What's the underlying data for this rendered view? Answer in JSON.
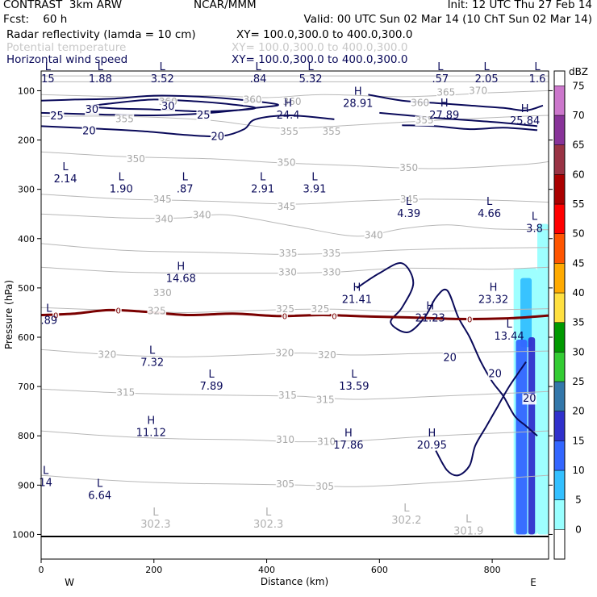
{
  "header": {
    "title": "CONTRAST  3km ARW",
    "source": "NCAR/MMM",
    "init": "Init: 12 UTC Thu 27 Feb 14",
    "fcst": "Fcst:    60 h",
    "valid": "Valid: 00 UTC Sun 02 Mar 14 (10 ChT Sun 02 Mar 14)",
    "fields": [
      {
        "name": "Radar reflectivity (lamda = 10 cm)",
        "xy": "XY= 100.0,300.0 to 400.0,300.0",
        "style": "dark"
      },
      {
        "name": "Potential temperature",
        "xy": "XY= 100.0,300.0 to 400.0,300.0",
        "style": "gray"
      },
      {
        "name": "Horizontal wind speed",
        "xy": "XY= 100.0,300.0 to 400.0,300.0",
        "style": "navy"
      }
    ]
  },
  "chart_data": {
    "type": "cross-section",
    "xlabel": "Distance (km)",
    "ylabel": "Pressure (hPa)",
    "xlim": [
      0,
      900
    ],
    "ylim": [
      1050,
      60
    ],
    "x_ticks": [
      0,
      200,
      400,
      600,
      800
    ],
    "y_ticks": [
      100,
      200,
      300,
      400,
      500,
      600,
      700,
      800,
      900,
      1000
    ],
    "x_end_labels": {
      "left": "W",
      "right": "E"
    },
    "colorbar": {
      "unit": "dBZ",
      "levels": [
        0,
        5,
        10,
        15,
        20,
        25,
        30,
        35,
        40,
        45,
        50,
        55,
        60,
        65,
        70,
        75
      ],
      "colors": [
        "#ffffff",
        "#99ffff",
        "#33c0ff",
        "#3366ff",
        "#3030cc",
        "#3377aa",
        "#33cc33",
        "#009900",
        "#ffe040",
        "#ffaa00",
        "#ff5500",
        "#ff0000",
        "#aa0000",
        "#993344",
        "#883399",
        "#cc77cc"
      ]
    },
    "theta_labels": [
      {
        "text": "365",
        "x": 718,
        "p": 103
      },
      {
        "text": "370",
        "x": 775,
        "p": 100
      },
      {
        "text": "360",
        "x": 225,
        "p": 122
      },
      {
        "text": "360",
        "x": 672,
        "p": 125
      },
      {
        "text": "360",
        "x": 445,
        "p": 122
      },
      {
        "text": "360",
        "x": 375,
        "p": 118
      },
      {
        "text": "355",
        "x": 148,
        "p": 157
      },
      {
        "text": "355",
        "x": 680,
        "p": 160
      },
      {
        "text": "355",
        "x": 440,
        "p": 183
      },
      {
        "text": "355",
        "x": 515,
        "p": 183
      },
      {
        "text": "350",
        "x": 168,
        "p": 238
      },
      {
        "text": "350",
        "x": 435,
        "p": 246
      },
      {
        "text": "350",
        "x": 652,
        "p": 256
      },
      {
        "text": "345",
        "x": 215,
        "p": 320
      },
      {
        "text": "345",
        "x": 435,
        "p": 335
      },
      {
        "text": "345",
        "x": 653,
        "p": 320
      },
      {
        "text": "340",
        "x": 218,
        "p": 360
      },
      {
        "text": "340",
        "x": 285,
        "p": 352
      },
      {
        "text": "340",
        "x": 590,
        "p": 393
      },
      {
        "text": "335",
        "x": 438,
        "p": 430
      },
      {
        "text": "335",
        "x": 515,
        "p": 430
      },
      {
        "text": "330",
        "x": 437,
        "p": 468
      },
      {
        "text": "330",
        "x": 515,
        "p": 468
      },
      {
        "text": "330",
        "x": 215,
        "p": 510
      },
      {
        "text": "325",
        "x": 205,
        "p": 547
      },
      {
        "text": "325",
        "x": 433,
        "p": 543
      },
      {
        "text": "325",
        "x": 495,
        "p": 543
      },
      {
        "text": "320",
        "x": 117,
        "p": 635
      },
      {
        "text": "320",
        "x": 432,
        "p": 632
      },
      {
        "text": "320",
        "x": 507,
        "p": 636
      },
      {
        "text": "315",
        "x": 150,
        "p": 712
      },
      {
        "text": "315",
        "x": 437,
        "p": 718
      },
      {
        "text": "315",
        "x": 504,
        "p": 727
      },
      {
        "text": "310",
        "x": 433,
        "p": 808
      },
      {
        "text": "310",
        "x": 506,
        "p": 812
      },
      {
        "text": "305",
        "x": 433,
        "p": 898
      },
      {
        "text": "305",
        "x": 503,
        "p": 903
      }
    ],
    "wind_contour_labels": [
      {
        "text": "30",
        "x": 90,
        "p": 137
      },
      {
        "text": "30",
        "x": 225,
        "p": 130
      },
      {
        "text": "25",
        "x": 28,
        "p": 150
      },
      {
        "text": "25",
        "x": 288,
        "p": 148
      },
      {
        "text": "20",
        "x": 85,
        "p": 180
      },
      {
        "text": "20",
        "x": 313,
        "p": 192
      },
      {
        "text": "20",
        "x": 725,
        "p": 640
      },
      {
        "text": "20",
        "x": 805,
        "p": 673
      },
      {
        "text": "20",
        "x": 866,
        "p": 723
      }
    ],
    "freezing_labels": [
      {
        "text": "0",
        "x": 26,
        "p": 555
      },
      {
        "text": "0",
        "x": 137,
        "p": 545
      },
      {
        "text": "0",
        "x": 432,
        "p": 557
      },
      {
        "text": "0",
        "x": 520,
        "p": 557
      },
      {
        "text": "0",
        "x": 760,
        "p": 563
      }
    ],
    "extrema": [
      {
        "type": "L",
        "value": "15",
        "x": 12,
        "p": 75
      },
      {
        "type": "L",
        "value": "1.88",
        "x": 105,
        "p": 75
      },
      {
        "type": "L",
        "value": "3.52",
        "x": 215,
        "p": 75
      },
      {
        "type": "L",
        "value": ".84",
        "x": 385,
        "p": 75
      },
      {
        "type": "L",
        "value": "5.32",
        "x": 478,
        "p": 75
      },
      {
        "type": "L",
        "value": ".57",
        "x": 708,
        "p": 75
      },
      {
        "type": "L",
        "value": "2.05",
        "x": 790,
        "p": 75
      },
      {
        "type": "L",
        "value": "1.6",
        "x": 880,
        "p": 75
      },
      {
        "type": "H",
        "value": "24.4",
        "x": 438,
        "p": 148
      },
      {
        "type": "H",
        "value": "28.91",
        "x": 562,
        "p": 125
      },
      {
        "type": "H",
        "value": "27.89",
        "x": 715,
        "p": 148
      },
      {
        "type": "H",
        "value": "25.84",
        "x": 858,
        "p": 160
      },
      {
        "type": "L",
        "value": "2.14",
        "x": 43,
        "p": 278
      },
      {
        "type": "L",
        "value": "1.90",
        "x": 142,
        "p": 298
      },
      {
        "type": "L",
        "value": ".87",
        "x": 255,
        "p": 298
      },
      {
        "type": "L",
        "value": "2.91",
        "x": 393,
        "p": 298
      },
      {
        "type": "L",
        "value": "3.91",
        "x": 485,
        "p": 298
      },
      {
        "type": "L",
        "value": "4.39",
        "x": 652,
        "p": 348
      },
      {
        "type": "L",
        "value": "4.66",
        "x": 795,
        "p": 348
      },
      {
        "type": "L",
        "value": "3.8",
        "x": 875,
        "p": 378
      },
      {
        "type": "H",
        "value": "14.68",
        "x": 248,
        "p": 480
      },
      {
        "type": "H",
        "value": "21.41",
        "x": 560,
        "p": 522
      },
      {
        "type": "H",
        "value": "21.23",
        "x": 690,
        "p": 560
      },
      {
        "type": "H",
        "value": "23.32",
        "x": 802,
        "p": 522
      },
      {
        "type": "L",
        "value": "13.44",
        "x": 830,
        "p": 597
      },
      {
        "type": "L",
        "value": ".89",
        "x": 14,
        "p": 565
      },
      {
        "type": "L",
        "value": "7.32",
        "x": 197,
        "p": 650
      },
      {
        "type": "L",
        "value": "7.89",
        "x": 302,
        "p": 698
      },
      {
        "type": "L",
        "value": "13.59",
        "x": 555,
        "p": 698
      },
      {
        "type": "H",
        "value": "11.12",
        "x": 195,
        "p": 792
      },
      {
        "type": "H",
        "value": "17.86",
        "x": 545,
        "p": 818
      },
      {
        "type": "H",
        "value": "20.95",
        "x": 693,
        "p": 818
      },
      {
        "type": "L",
        "value": "14",
        "x": 8,
        "p": 894
      },
      {
        "type": "L",
        "value": "6.64",
        "x": 104,
        "p": 920
      }
    ],
    "theta_extrema": [
      {
        "type": "L",
        "value": "302.3",
        "x": 203,
        "p": 978
      },
      {
        "type": "L",
        "value": "302.3",
        "x": 403,
        "p": 978
      },
      {
        "type": "L",
        "value": "302.2",
        "x": 648,
        "p": 970
      },
      {
        "type": "L",
        "value": "301.9",
        "x": 758,
        "p": 992
      }
    ],
    "theta_contours": [
      {
        "level": 370,
        "x": [
          0,
          300,
          600,
          900
        ],
        "p": [
          70,
          70,
          70,
          70
        ]
      },
      {
        "level": 365,
        "x": [
          0,
          300,
          600,
          900
        ],
        "p": [
          82,
          82,
          82,
          82
        ]
      },
      {
        "level": 360,
        "x": [
          0,
          150,
          300,
          400,
          500,
          650,
          800,
          900
        ],
        "p": [
          108,
          112,
          110,
          114,
          108,
          112,
          104,
          100
        ]
      },
      {
        "level": 355,
        "x": [
          0,
          150,
          300,
          420,
          550,
          700,
          850,
          900
        ],
        "p": [
          152,
          152,
          160,
          176,
          170,
          160,
          152,
          150
        ]
      },
      {
        "level": 350,
        "x": [
          0,
          150,
          300,
          420,
          550,
          700,
          850,
          900
        ],
        "p": [
          224,
          234,
          238,
          246,
          252,
          258,
          250,
          244
        ]
      },
      {
        "level": 345,
        "x": [
          0,
          150,
          230,
          320,
          450,
          560,
          680,
          800,
          900
        ],
        "p": [
          310,
          320,
          322,
          325,
          330,
          324,
          320,
          322,
          326
        ]
      },
      {
        "level": 340,
        "x": [
          0,
          150,
          250,
          330,
          450,
          560,
          640,
          720,
          800,
          900
        ],
        "p": [
          350,
          358,
          358,
          352,
          375,
          395,
          380,
          372,
          380,
          382
        ]
      },
      {
        "level": 335,
        "x": [
          0,
          150,
          300,
          420,
          520,
          620,
          740,
          900
        ],
        "p": [
          410,
          424,
          428,
          432,
          430,
          424,
          420,
          418
        ]
      },
      {
        "level": 330,
        "x": [
          0,
          150,
          300,
          420,
          520,
          640,
          800,
          900
        ],
        "p": [
          458,
          468,
          470,
          470,
          468,
          460,
          462,
          458
        ]
      },
      {
        "level": 325,
        "x": [
          0,
          120,
          240,
          320,
          430,
          520,
          640,
          780,
          900
        ],
        "p": [
          540,
          545,
          550,
          548,
          544,
          543,
          548,
          545,
          542
        ]
      },
      {
        "level": 320,
        "x": [
          0,
          120,
          240,
          360,
          460,
          560,
          700,
          900
        ],
        "p": [
          625,
          635,
          640,
          636,
          632,
          636,
          632,
          628
        ]
      },
      {
        "level": 315,
        "x": [
          0,
          120,
          240,
          360,
          460,
          560,
          700,
          900
        ],
        "p": [
          705,
          712,
          716,
          718,
          720,
          726,
          720,
          710
        ]
      },
      {
        "level": 310,
        "x": [
          0,
          120,
          240,
          360,
          460,
          560,
          700,
          900
        ],
        "p": [
          790,
          800,
          806,
          808,
          812,
          810,
          800,
          790
        ]
      },
      {
        "level": 305,
        "x": [
          0,
          120,
          240,
          360,
          460,
          560,
          700,
          900
        ],
        "p": [
          880,
          890,
          896,
          898,
          900,
          903,
          895,
          880
        ]
      }
    ],
    "wind_contours": [
      {
        "level": 30,
        "x": [
          80,
          130,
          200,
          280,
          340,
          380,
          340,
          280,
          200,
          130,
          80
        ],
        "p": [
          132,
          125,
          118,
          122,
          128,
          135,
          140,
          142,
          138,
          136,
          132
        ]
      },
      {
        "level": 25,
        "x": [
          0,
          60,
          130,
          200,
          280,
          350,
          420,
          380,
          300,
          200,
          100,
          0
        ],
        "p": [
          120,
          118,
          116,
          110,
          112,
          118,
          128,
          135,
          145,
          150,
          148,
          145
        ]
      },
      {
        "level": 20,
        "x": [
          0,
          80,
          180,
          260,
          320,
          360,
          380,
          440,
          520
        ],
        "p": [
          172,
          176,
          182,
          190,
          192,
          178,
          158,
          150,
          158
        ]
      },
      {
        "level": 20,
        "x": [
          580,
          640,
          700,
          760,
          820,
          860,
          890
        ],
        "p": [
          108,
          120,
          125,
          130,
          135,
          140,
          130
        ]
      },
      {
        "level": 20,
        "x": [
          600,
          650,
          700,
          760,
          820,
          880
        ],
        "p": [
          145,
          150,
          155,
          160,
          165,
          172
        ]
      },
      {
        "level": 20,
        "x": [
          640,
          700,
          760,
          820,
          880
        ],
        "p": [
          170,
          172,
          178,
          175,
          180
        ]
      },
      {
        "level": 20,
        "x": [
          560,
          600,
          640,
          660,
          640,
          620,
          650,
          680,
          700,
          720,
          740,
          760,
          780,
          800,
          820,
          840,
          860,
          880
        ],
        "p": [
          500,
          470,
          450,
          490,
          540,
          570,
          590,
          560,
          520,
          505,
          560,
          600,
          650,
          690,
          720,
          760,
          780,
          800
        ]
      },
      {
        "level": 20,
        "x": [
          700,
          720,
          740,
          760,
          770,
          790,
          810,
          830,
          860
        ],
        "p": [
          830,
          870,
          880,
          860,
          820,
          780,
          740,
          700,
          650
        ]
      }
    ],
    "freezing_line": {
      "x": [
        0,
        60,
        120,
        180,
        260,
        340,
        420,
        500,
        580,
        660,
        740,
        820,
        880,
        900
      ],
      "p": [
        555,
        552,
        545,
        548,
        555,
        552,
        557,
        555,
        558,
        560,
        563,
        562,
        558,
        556
      ]
    },
    "reflectivity_cells": [
      {
        "x": [
          842,
          862
        ],
        "p_top": 605,
        "p_bottom": 1000,
        "dbz": 15
      },
      {
        "x": [
          864,
          876
        ],
        "p_top": 600,
        "p_bottom": 1000,
        "dbz": 20
      },
      {
        "x": [
          838,
          880
        ],
        "p_top": 460,
        "p_bottom": 1000,
        "dbz": 5
      },
      {
        "x": [
          880,
          900
        ],
        "p_top": 370,
        "p_bottom": 1000,
        "dbz": 5
      },
      {
        "x": [
          850,
          870
        ],
        "p_top": 480,
        "p_bottom": 620,
        "dbz": 10
      }
    ]
  }
}
